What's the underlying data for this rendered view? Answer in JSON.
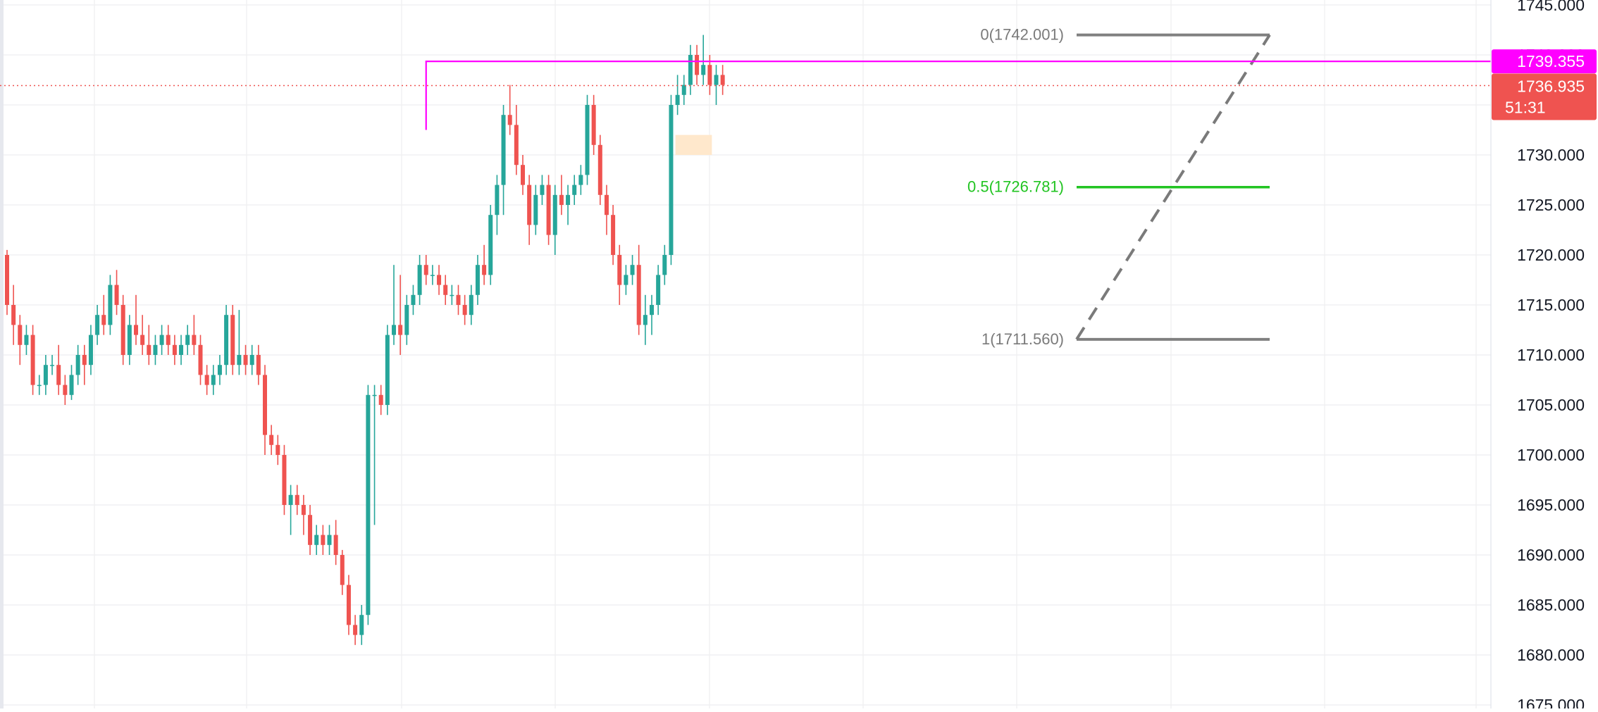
{
  "chart_data": {
    "type": "candlestick",
    "ylim": [
      1675,
      1745
    ],
    "y_ticks": [
      "1675.000",
      "1680.000",
      "1685.000",
      "1690.000",
      "1695.000",
      "1700.000",
      "1705.000",
      "1710.000",
      "1715.000",
      "1720.000",
      "1725.000",
      "1730.000",
      "1735.000",
      "1740.000",
      "1745.000"
    ],
    "grid": true,
    "colors": {
      "up": "#26a69a",
      "down": "#ef5350",
      "alert_line": "#ff00ff",
      "fib_mid": "#22c422",
      "fib_ends": "#808080",
      "price_label_bg": "#ef5350",
      "alert_label_bg": "#ff00ff",
      "zone": "#ffe8cc"
    },
    "alert": {
      "value": 1739.355,
      "label": "1739.355"
    },
    "current_price": {
      "value": 1736.935,
      "label": "1736.935",
      "countdown": "51:31"
    },
    "fibonacci": {
      "levels": [
        {
          "ratio": "0",
          "price": 1742.001,
          "label": "0(1742.001)",
          "color": "#808080"
        },
        {
          "ratio": "0.5",
          "price": 1726.781,
          "label": "0.5(1726.781)",
          "color": "#22c422"
        },
        {
          "ratio": "1",
          "price": 1711.56,
          "label": "1(1711.560)",
          "color": "#808080"
        }
      ],
      "trend_from_index": 103,
      "trend_to_index": 119
    },
    "zone": {
      "from_index": 104,
      "to_index": 109,
      "high": 1732,
      "low": 1730
    },
    "candles": [
      [
        1720,
        1720.5,
        1714,
        1715
      ],
      [
        1715,
        1717,
        1711,
        1713
      ],
      [
        1713,
        1714,
        1709,
        1711
      ],
      [
        1711,
        1713,
        1710,
        1712
      ],
      [
        1712,
        1713,
        1706,
        1707
      ],
      [
        1707,
        1708,
        1706,
        1707
      ],
      [
        1707,
        1710,
        1706,
        1709
      ],
      [
        1709,
        1710,
        1708,
        1709
      ],
      [
        1709,
        1711,
        1706,
        1707
      ],
      [
        1707,
        1708,
        1705,
        1706
      ],
      [
        1706,
        1709,
        1705.5,
        1708
      ],
      [
        1708,
        1711,
        1707,
        1710
      ],
      [
        1710,
        1711,
        1707,
        1709
      ],
      [
        1709,
        1713,
        1708,
        1712
      ],
      [
        1712,
        1715,
        1711,
        1714
      ],
      [
        1714,
        1716,
        1712,
        1713
      ],
      [
        1713,
        1718,
        1712,
        1717
      ],
      [
        1717,
        1718.5,
        1714,
        1715
      ],
      [
        1715,
        1716,
        1709,
        1710
      ],
      [
        1710,
        1714,
        1709,
        1713
      ],
      [
        1713,
        1716,
        1711,
        1712
      ],
      [
        1712,
        1714,
        1710,
        1711
      ],
      [
        1711,
        1713,
        1709,
        1710
      ],
      [
        1710,
        1712,
        1709,
        1711
      ],
      [
        1711,
        1713,
        1710,
        1712
      ],
      [
        1712,
        1713,
        1710,
        1711
      ],
      [
        1711,
        1712,
        1709,
        1710
      ],
      [
        1710,
        1712,
        1709,
        1711
      ],
      [
        1711,
        1713,
        1710,
        1712
      ],
      [
        1712,
        1714,
        1710,
        1711
      ],
      [
        1711,
        1712,
        1707,
        1708
      ],
      [
        1708,
        1709,
        1706,
        1707
      ],
      [
        1707,
        1709,
        1706,
        1708
      ],
      [
        1708,
        1710,
        1707,
        1709
      ],
      [
        1709,
        1715,
        1708,
        1714
      ],
      [
        1714,
        1715,
        1708,
        1709
      ],
      [
        1709,
        1714.5,
        1708,
        1710
      ],
      [
        1710,
        1711,
        1708,
        1709
      ],
      [
        1709,
        1711,
        1708,
        1710
      ],
      [
        1710,
        1711,
        1707,
        1708
      ],
      [
        1708,
        1709,
        1700,
        1702
      ],
      [
        1702,
        1703,
        1700,
        1701
      ],
      [
        1701,
        1702,
        1699,
        1700
      ],
      [
        1700,
        1701,
        1694,
        1695
      ],
      [
        1695,
        1697,
        1692,
        1696
      ],
      [
        1696,
        1697,
        1694,
        1695
      ],
      [
        1695,
        1696,
        1692,
        1694
      ],
      [
        1694,
        1695,
        1690,
        1691
      ],
      [
        1691,
        1693,
        1690,
        1692
      ],
      [
        1692,
        1693,
        1690,
        1691
      ],
      [
        1691,
        1693,
        1690,
        1692
      ],
      [
        1692,
        1693.5,
        1689,
        1690
      ],
      [
        1690,
        1690.5,
        1686,
        1687
      ],
      [
        1687,
        1688,
        1682,
        1683
      ],
      [
        1683,
        1684,
        1681,
        1682
      ],
      [
        1682,
        1685,
        1681,
        1684
      ],
      [
        1684,
        1707,
        1683,
        1706
      ],
      [
        1706,
        1707,
        1693,
        1706
      ],
      [
        1706,
        1707,
        1704,
        1705
      ],
      [
        1705,
        1713,
        1704,
        1712
      ],
      [
        1712,
        1719,
        1711,
        1713
      ],
      [
        1713,
        1718,
        1710,
        1712
      ],
      [
        1712,
        1716,
        1711,
        1715
      ],
      [
        1715,
        1717,
        1714,
        1716
      ],
      [
        1716,
        1720,
        1715,
        1719
      ],
      [
        1719,
        1720,
        1717,
        1718
      ],
      [
        1718,
        1719,
        1717,
        1718
      ],
      [
        1718,
        1719,
        1716,
        1717
      ],
      [
        1717,
        1718,
        1715,
        1716
      ],
      [
        1716,
        1717,
        1715,
        1716
      ],
      [
        1716,
        1717,
        1714,
        1715
      ],
      [
        1715,
        1716,
        1713,
        1714
      ],
      [
        1714,
        1717,
        1713,
        1716
      ],
      [
        1716,
        1720,
        1715,
        1719
      ],
      [
        1719,
        1721,
        1717,
        1718
      ],
      [
        1718,
        1725,
        1717,
        1724
      ],
      [
        1724,
        1728,
        1722,
        1727
      ],
      [
        1727,
        1735,
        1724,
        1734
      ],
      [
        1734,
        1737,
        1732,
        1733
      ],
      [
        1733,
        1735,
        1728,
        1729
      ],
      [
        1729,
        1730,
        1726,
        1727
      ],
      [
        1727,
        1728,
        1721,
        1723
      ],
      [
        1723,
        1727,
        1722,
        1726
      ],
      [
        1726,
        1728,
        1725,
        1727
      ],
      [
        1727,
        1728,
        1721,
        1722
      ],
      [
        1722,
        1727,
        1720,
        1726
      ],
      [
        1726,
        1728,
        1724,
        1725
      ],
      [
        1725,
        1727,
        1723,
        1726
      ],
      [
        1726,
        1728,
        1725,
        1727
      ],
      [
        1727,
        1729,
        1726,
        1728
      ],
      [
        1728,
        1736,
        1727,
        1735
      ],
      [
        1735,
        1736,
        1730,
        1731
      ],
      [
        1731,
        1732,
        1725,
        1726
      ],
      [
        1726,
        1727,
        1722,
        1724
      ],
      [
        1724,
        1725,
        1719,
        1720
      ],
      [
        1720,
        1721,
        1715,
        1717
      ],
      [
        1717,
        1719,
        1716,
        1718
      ],
      [
        1718,
        1720,
        1717,
        1719
      ],
      [
        1719,
        1721,
        1712,
        1713
      ],
      [
        1713,
        1716,
        1711,
        1714
      ],
      [
        1714,
        1716,
        1712,
        1715
      ],
      [
        1715,
        1719,
        1714,
        1718
      ],
      [
        1718,
        1721,
        1717,
        1720
      ],
      [
        1720,
        1736,
        1719,
        1735
      ],
      [
        1735,
        1738,
        1734,
        1736
      ],
      [
        1736,
        1738,
        1735,
        1737
      ],
      [
        1737,
        1741,
        1736,
        1740
      ],
      [
        1740,
        1741,
        1737,
        1738
      ],
      [
        1738,
        1742,
        1737,
        1739
      ],
      [
        1739,
        1740,
        1736,
        1737
      ],
      [
        1737,
        1739,
        1735,
        1738
      ],
      [
        1738,
        1739,
        1736,
        1737
      ]
    ]
  }
}
